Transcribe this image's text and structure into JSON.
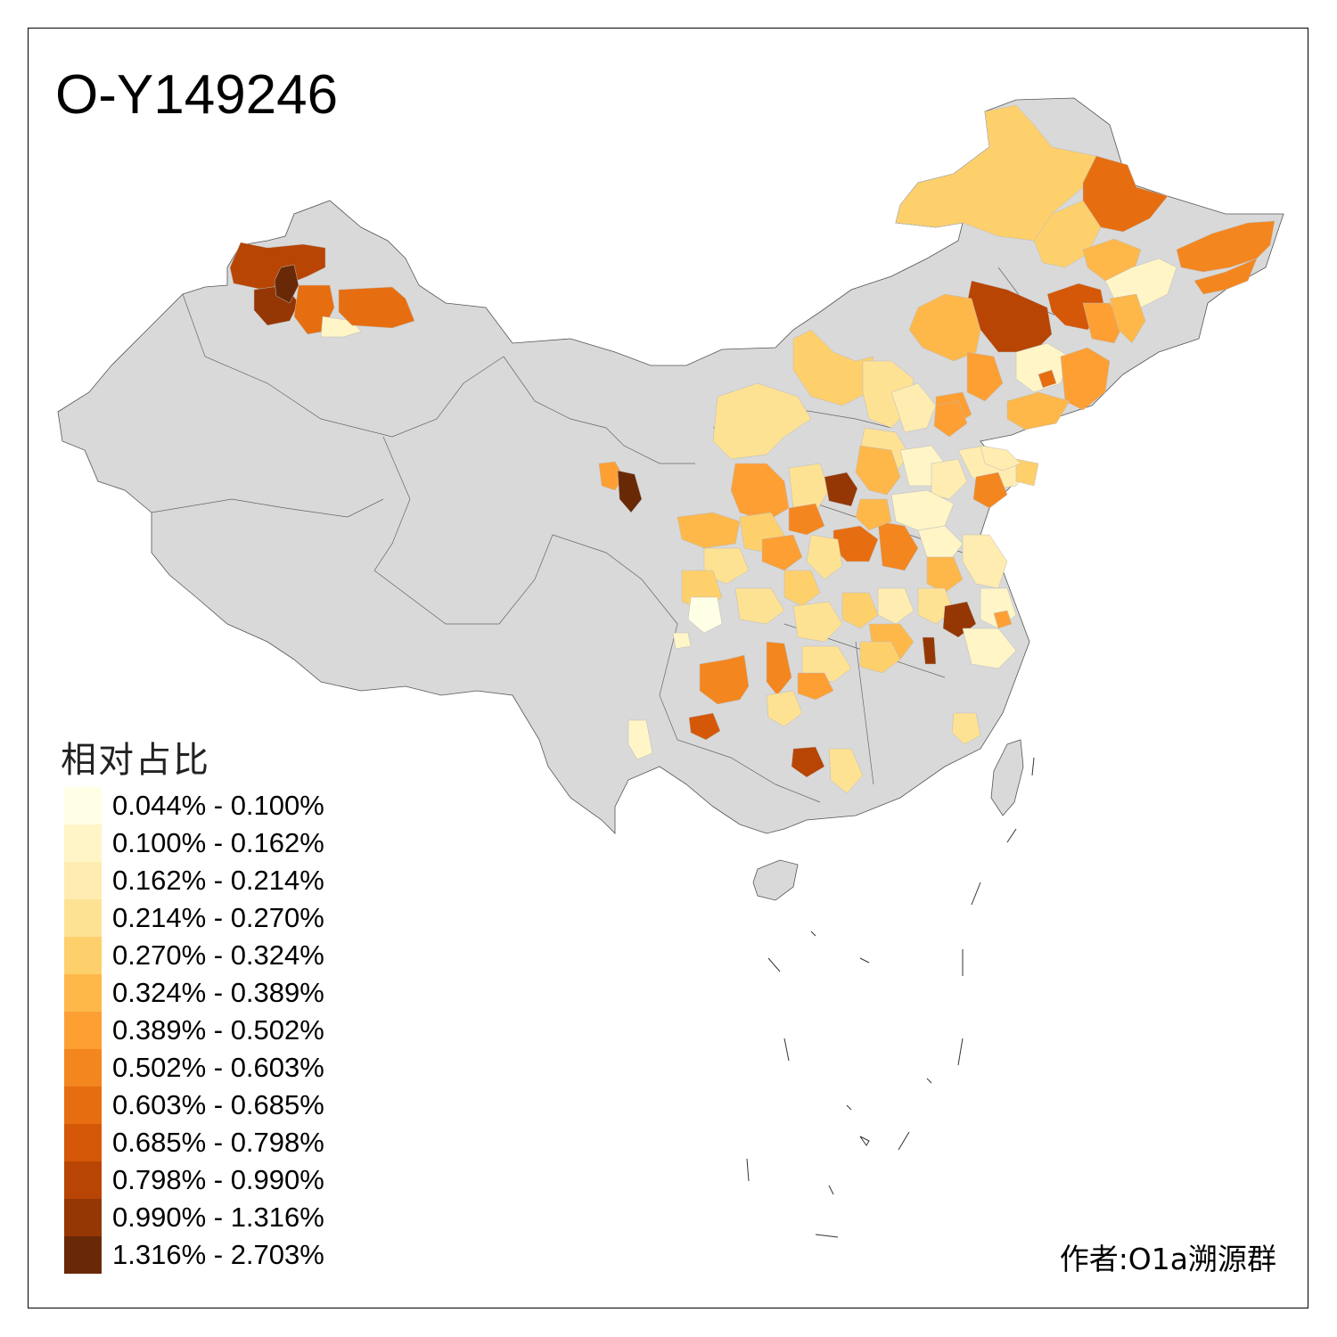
{
  "map": {
    "title": "O-Y149246",
    "legend_title": "相对占比",
    "legend": [
      {
        "label": "0.044% - 0.100%",
        "color": "#ffffe5"
      },
      {
        "label": "0.100% - 0.162%",
        "color": "#fff5c7"
      },
      {
        "label": "0.162% - 0.214%",
        "color": "#feecb0"
      },
      {
        "label": "0.214% - 0.270%",
        "color": "#fee294"
      },
      {
        "label": "0.270% - 0.324%",
        "color": "#fed06c"
      },
      {
        "label": "0.324% - 0.389%",
        "color": "#feb84a"
      },
      {
        "label": "0.389% - 0.502%",
        "color": "#fe9f34"
      },
      {
        "label": "0.502% - 0.603%",
        "color": "#f4861f"
      },
      {
        "label": "0.603% - 0.685%",
        "color": "#e76e10"
      },
      {
        "label": "0.685% - 0.798%",
        "color": "#d55808"
      },
      {
        "label": "0.798% - 0.990%",
        "color": "#b84504"
      },
      {
        "label": "0.990% - 1.316%",
        "color": "#953705"
      },
      {
        "label": "1.316% - 2.703%",
        "color": "#6a2906"
      }
    ],
    "no_data_color": "#d9d9d9",
    "author": "作者:O1a溯源群"
  }
}
